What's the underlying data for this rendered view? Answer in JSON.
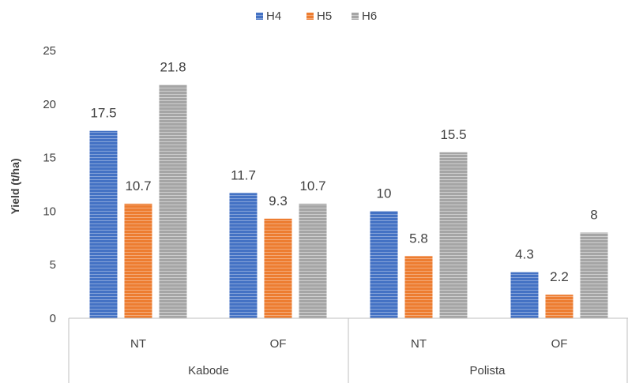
{
  "chart_data": {
    "type": "bar",
    "title": "",
    "xlabel": "",
    "ylabel": "Yield (t/ha)",
    "ylim": [
      0,
      25
    ],
    "yticks": [
      0,
      5,
      10,
      15,
      20,
      25
    ],
    "grid": false,
    "legend_position": "top-center",
    "groups": [
      {
        "name": "Kabode",
        "categories": [
          "NT",
          "OF"
        ]
      },
      {
        "name": "Polista",
        "categories": [
          "NT",
          "OF"
        ]
      }
    ],
    "series": [
      {
        "name": "H4",
        "color": "#4472c4",
        "values": [
          17.5,
          11.7,
          10,
          4.3
        ],
        "labels": [
          "17.5",
          "11.7",
          "10",
          "4.3"
        ]
      },
      {
        "name": "H5",
        "color": "#ed7d31",
        "values": [
          10.7,
          9.3,
          5.8,
          2.2
        ],
        "labels": [
          "10.7",
          "9.3",
          "5.8",
          "2.2"
        ]
      },
      {
        "name": "H6",
        "color": "#a5a5a5",
        "values": [
          21.8,
          10.7,
          15.5,
          8
        ],
        "labels": [
          "21.8",
          "10.7",
          "15.5",
          "8"
        ]
      }
    ]
  }
}
